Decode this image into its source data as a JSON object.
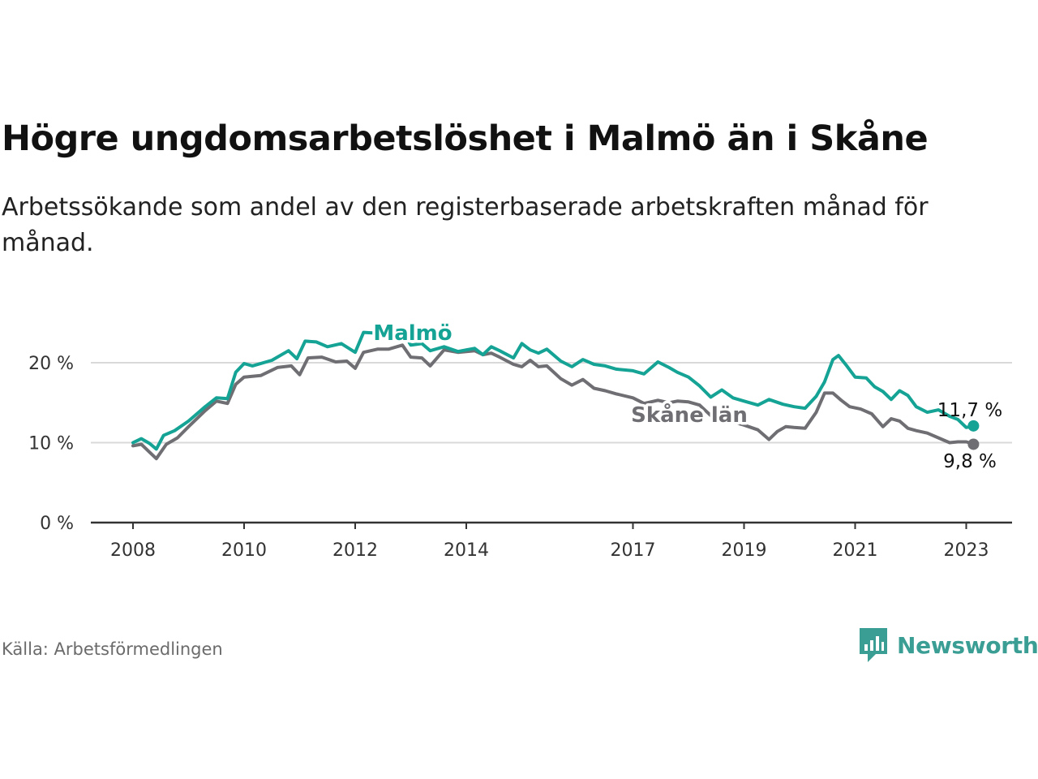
{
  "header": {
    "title": "Högre ungdomsarbetslöshet i Malmö än i Skåne",
    "subtitle": "Arbetssökande som andel av den registerbaserade arbetskraften månad för månad."
  },
  "footer": {
    "source": "Källa: Arbetsförmedlingen",
    "brand": "Newsworthy"
  },
  "colors": {
    "malmo": "#14a394",
    "skane": "#6e6e73",
    "brand": "#3a9e95"
  },
  "chart_data": {
    "type": "line",
    "title": "Högre ungdomsarbetslöshet i Malmö än i Skåne",
    "xlabel": "",
    "ylabel": "",
    "xlim": [
      2007.6,
      2024.0
    ],
    "ylim": [
      0,
      20
    ],
    "x_ticks": [
      2008,
      2010,
      2012,
      2014,
      2017,
      2019,
      2021,
      2023
    ],
    "x_tick_labels": [
      "2008",
      "2010",
      "2012",
      "2014",
      "2017",
      "2019",
      "2021",
      "2023"
    ],
    "y_ticks": [
      0,
      10,
      20
    ],
    "y_tick_labels": [
      "0 %",
      "10 %",
      "20 %"
    ],
    "grid": true,
    "series": [
      {
        "name": "Malmö",
        "label": "Malmö",
        "end_label": "11,7 %",
        "points": [
          [
            2008.0,
            10.0
          ],
          [
            2008.15,
            10.5
          ],
          [
            2008.3,
            9.9
          ],
          [
            2008.42,
            9.2
          ],
          [
            2008.55,
            10.9
          ],
          [
            2008.75,
            11.5
          ],
          [
            2009.0,
            12.7
          ],
          [
            2009.3,
            14.5
          ],
          [
            2009.5,
            15.6
          ],
          [
            2009.7,
            15.5
          ],
          [
            2009.85,
            18.8
          ],
          [
            2010.0,
            19.9
          ],
          [
            2010.15,
            19.6
          ],
          [
            2010.5,
            20.3
          ],
          [
            2010.8,
            21.5
          ],
          [
            2010.95,
            20.5
          ],
          [
            2011.1,
            22.7
          ],
          [
            2011.3,
            22.6
          ],
          [
            2011.5,
            22.0
          ],
          [
            2011.75,
            22.4
          ],
          [
            2012.0,
            21.3
          ],
          [
            2012.15,
            23.8
          ],
          [
            2012.4,
            23.7
          ],
          [
            2012.6,
            23.5
          ],
          [
            2012.85,
            24.0
          ],
          [
            2013.0,
            22.2
          ],
          [
            2013.2,
            22.4
          ],
          [
            2013.35,
            21.5
          ],
          [
            2013.6,
            22.0
          ],
          [
            2013.85,
            21.4
          ],
          [
            2014.0,
            21.6
          ],
          [
            2014.15,
            21.8
          ],
          [
            2014.3,
            21.0
          ],
          [
            2014.45,
            22.0
          ],
          [
            2014.6,
            21.5
          ],
          [
            2014.85,
            20.6
          ],
          [
            2015.0,
            22.4
          ],
          [
            2015.15,
            21.6
          ],
          [
            2015.3,
            21.2
          ],
          [
            2015.45,
            21.7
          ],
          [
            2015.7,
            20.2
          ],
          [
            2015.9,
            19.5
          ],
          [
            2016.1,
            20.4
          ],
          [
            2016.3,
            19.8
          ],
          [
            2016.5,
            19.6
          ],
          [
            2016.7,
            19.2
          ],
          [
            2017.0,
            19.0
          ],
          [
            2017.2,
            18.6
          ],
          [
            2017.45,
            20.1
          ],
          [
            2017.65,
            19.4
          ],
          [
            2017.8,
            18.8
          ],
          [
            2018.0,
            18.2
          ],
          [
            2018.2,
            17.1
          ],
          [
            2018.4,
            15.7
          ],
          [
            2018.6,
            16.6
          ],
          [
            2018.8,
            15.6
          ],
          [
            2019.0,
            15.2
          ],
          [
            2019.25,
            14.7
          ],
          [
            2019.45,
            15.4
          ],
          [
            2019.7,
            14.8
          ],
          [
            2019.9,
            14.5
          ],
          [
            2020.1,
            14.3
          ],
          [
            2020.3,
            15.8
          ],
          [
            2020.45,
            17.6
          ],
          [
            2020.6,
            20.4
          ],
          [
            2020.7,
            20.9
          ],
          [
            2020.85,
            19.6
          ],
          [
            2021.0,
            18.2
          ],
          [
            2021.2,
            18.1
          ],
          [
            2021.35,
            17.0
          ],
          [
            2021.5,
            16.4
          ],
          [
            2021.65,
            15.4
          ],
          [
            2021.8,
            16.5
          ],
          [
            2021.95,
            15.9
          ],
          [
            2022.1,
            14.5
          ],
          [
            2022.3,
            13.8
          ],
          [
            2022.5,
            14.1
          ],
          [
            2022.7,
            13.3
          ],
          [
            2022.85,
            12.9
          ],
          [
            2023.0,
            11.9
          ],
          [
            2023.15,
            12.1
          ]
        ]
      },
      {
        "name": "Skåne län",
        "label": "Skåne län",
        "end_label": "9,8 %",
        "points": [
          [
            2008.0,
            9.6
          ],
          [
            2008.15,
            9.8
          ],
          [
            2008.3,
            8.8
          ],
          [
            2008.42,
            8.0
          ],
          [
            2008.6,
            9.8
          ],
          [
            2008.8,
            10.6
          ],
          [
            2009.0,
            12.0
          ],
          [
            2009.3,
            14.0
          ],
          [
            2009.5,
            15.2
          ],
          [
            2009.7,
            14.9
          ],
          [
            2009.85,
            17.3
          ],
          [
            2010.0,
            18.2
          ],
          [
            2010.3,
            18.4
          ],
          [
            2010.6,
            19.4
          ],
          [
            2010.85,
            19.6
          ],
          [
            2011.0,
            18.5
          ],
          [
            2011.15,
            20.6
          ],
          [
            2011.4,
            20.7
          ],
          [
            2011.65,
            20.1
          ],
          [
            2011.85,
            20.2
          ],
          [
            2012.0,
            19.3
          ],
          [
            2012.15,
            21.3
          ],
          [
            2012.4,
            21.7
          ],
          [
            2012.6,
            21.7
          ],
          [
            2012.85,
            22.2
          ],
          [
            2013.0,
            20.7
          ],
          [
            2013.2,
            20.6
          ],
          [
            2013.35,
            19.6
          ],
          [
            2013.6,
            21.6
          ],
          [
            2013.85,
            21.3
          ],
          [
            2014.0,
            21.4
          ],
          [
            2014.15,
            21.5
          ],
          [
            2014.3,
            21.0
          ],
          [
            2014.45,
            21.2
          ],
          [
            2014.6,
            20.7
          ],
          [
            2014.85,
            19.8
          ],
          [
            2015.0,
            19.5
          ],
          [
            2015.15,
            20.3
          ],
          [
            2015.3,
            19.5
          ],
          [
            2015.45,
            19.6
          ],
          [
            2015.7,
            18.0
          ],
          [
            2015.9,
            17.2
          ],
          [
            2016.1,
            17.9
          ],
          [
            2016.3,
            16.8
          ],
          [
            2016.5,
            16.5
          ],
          [
            2016.7,
            16.1
          ],
          [
            2017.0,
            15.6
          ],
          [
            2017.2,
            14.9
          ],
          [
            2017.45,
            15.3
          ],
          [
            2017.65,
            15.0
          ],
          [
            2017.8,
            15.2
          ],
          [
            2018.0,
            15.1
          ],
          [
            2018.2,
            14.7
          ],
          [
            2018.4,
            13.4
          ],
          [
            2018.6,
            13.9
          ],
          [
            2018.8,
            12.6
          ],
          [
            2019.0,
            12.2
          ],
          [
            2019.25,
            11.6
          ],
          [
            2019.45,
            10.4
          ],
          [
            2019.6,
            11.4
          ],
          [
            2019.75,
            12.0
          ],
          [
            2019.9,
            11.9
          ],
          [
            2020.1,
            11.8
          ],
          [
            2020.3,
            13.8
          ],
          [
            2020.45,
            16.2
          ],
          [
            2020.6,
            16.2
          ],
          [
            2020.75,
            15.3
          ],
          [
            2020.9,
            14.5
          ],
          [
            2021.1,
            14.2
          ],
          [
            2021.3,
            13.6
          ],
          [
            2021.5,
            12.0
          ],
          [
            2021.65,
            13.0
          ],
          [
            2021.8,
            12.7
          ],
          [
            2021.95,
            11.8
          ],
          [
            2022.1,
            11.5
          ],
          [
            2022.3,
            11.2
          ],
          [
            2022.5,
            10.6
          ],
          [
            2022.7,
            10.0
          ],
          [
            2022.85,
            10.1
          ],
          [
            2023.0,
            10.1
          ],
          [
            2023.15,
            9.8
          ]
        ]
      }
    ]
  }
}
